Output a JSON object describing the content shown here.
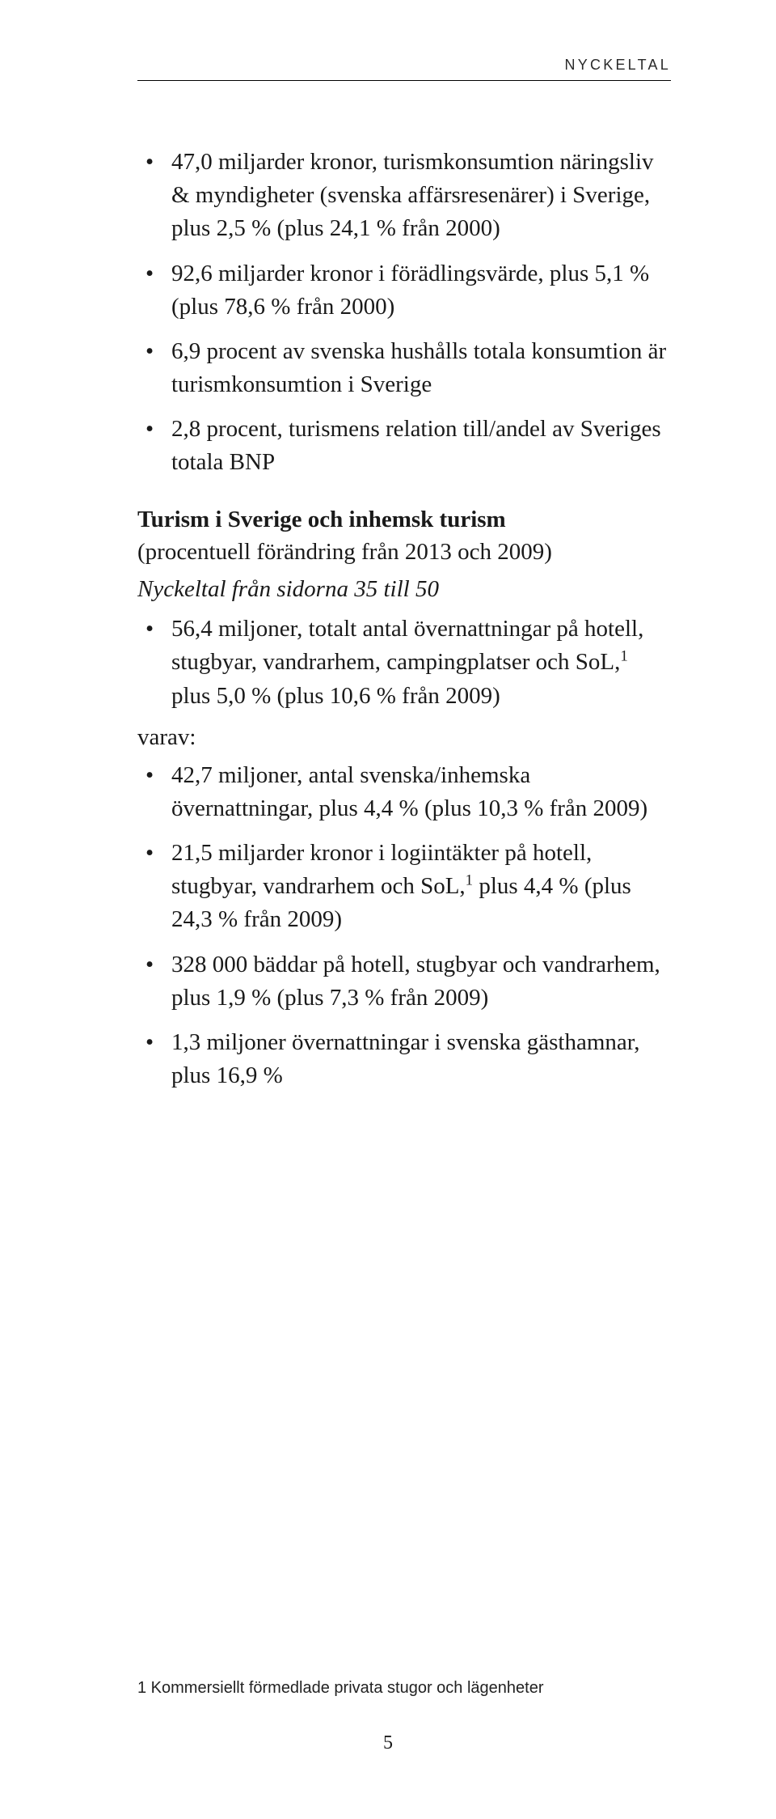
{
  "running_head": "NYCKELTAL",
  "bullets_top": [
    "47,0 miljarder kronor, turismkonsumtion näringsliv & myndigheter (svenska affärsresenärer) i Sverige, plus 2,5 % (plus 24,1 % från 2000)",
    "92,6 miljarder kronor i förädlingsvärde, plus 5,1 % (plus 78,6 % från 2000)",
    "6,9 procent av svenska hushålls totala konsumtion är turismkonsumtion i Sverige",
    "2,8 procent, turismens relation till/andel av Sveriges totala BNP"
  ],
  "heading": "Turism i Sverige och inhemsk turism",
  "subheading": "(procentuell förändring från 2013 och 2009)",
  "italic_line": "Nyckeltal från sidorna 35 till 50",
  "bullet_mid_pre": "56,4 miljoner, totalt antal övernattningar på hotell, stugbyar, vandrarhem, campingplatser och SoL,",
  "bullet_mid_post": " plus 5,0 % (plus 10,6 % från 2009)",
  "varav": "varav:",
  "bullets_bottom": [
    "42,7 miljoner, antal svenska/inhemska övernattningar, plus 4,4 % (plus 10,3 % från 2009)",
    null,
    "328 000 bäddar på hotell, stugbyar och vandrarhem, plus 1,9 % (plus 7,3 % från 2009)",
    "1,3 miljoner övernattningar i svenska gästhamnar, plus 16,9 %"
  ],
  "bullet_b1_pre": "21,5 miljarder kronor i logiintäkter på hotell, stugbyar, vandrarhem och SoL,",
  "bullet_b1_post": " plus 4,4 % (plus 24,3 % från 2009)",
  "footnote": "1 Kommersiellt förmedlade privata stugor och lägenheter",
  "page_number": "5"
}
